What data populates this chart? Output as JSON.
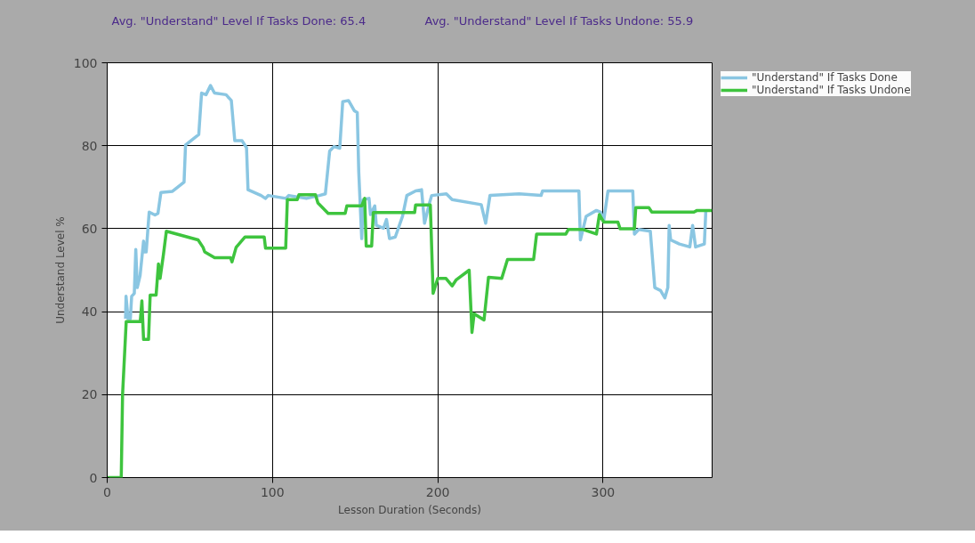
{
  "chart_data": {
    "type": "line",
    "xlabel": "Lesson Duration (Seconds)",
    "ylabel": "Understand Level %",
    "annotations": [
      "Avg. \"Understand\" Level If Tasks Done: 65.4",
      "Avg. \"Understand\" Level If Tasks Undone: 55.9"
    ],
    "xlim": [
      0,
      366
    ],
    "ylim": [
      0,
      100
    ],
    "xticks": [
      0,
      100,
      200,
      300
    ],
    "yticks": [
      0,
      20,
      40,
      60,
      80,
      100
    ],
    "grid": true,
    "legend": "top right",
    "line_style": "solid",
    "marker": "none",
    "series": [
      {
        "name": "\"Understand\" If Tasks Done",
        "color": "#8ac6e2",
        "x": [
          11.1,
          11.4,
          12.6,
          14,
          14.8,
          16.4,
          17.3,
          18.2,
          19.9,
          22,
          22.7,
          23.6,
          25.4,
          28.9,
          30.7,
          32.5,
          39.5,
          46.5,
          47.4,
          55.4,
          57.1,
          59.8,
          62.5,
          64.9,
          71.9,
          75.1,
          77.2,
          81.6,
          84.3,
          85.2,
          93.1,
          95.7,
          97.5,
          108.1,
          109.9,
          120.5,
          128.4,
          132,
          134.6,
          137.2,
          140.7,
          142.5,
          146,
          149.6,
          151.3,
          152.2,
          154,
          154.9,
          158.4,
          159.3,
          161.9,
          162.8,
          167.2,
          169,
          170.8,
          174.3,
          178.7,
          181.3,
          186.6,
          190.2,
          192,
          194.6,
          196.3,
          205.2,
          208.7,
          226.3,
          229,
          231.6,
          249.2,
          262.5,
          263.4,
          285.4,
          286.3,
          289.8,
          296,
          298.6,
          300.4,
          303,
          318,
          319,
          321.6,
          328.6,
          331.3,
          334.8,
          337.4,
          339.2,
          340,
          340.9,
          346.2,
          352.5,
          354.2,
          356,
          361.3,
          362.2
        ],
        "values": [
          38.3,
          43.7,
          38.3,
          38.3,
          43.7,
          44.4,
          55,
          45.8,
          48.7,
          57,
          54.4,
          54.4,
          64,
          63.3,
          63.7,
          68.7,
          69,
          71.2,
          80.2,
          82.7,
          92.7,
          92.3,
          94.5,
          92.7,
          92.3,
          90.9,
          81.2,
          81.2,
          79.5,
          69.4,
          68,
          67.3,
          68,
          67.3,
          68,
          67.3,
          68,
          68.4,
          78.7,
          79.8,
          79.4,
          90.6,
          90.9,
          88.4,
          88,
          73.7,
          57.6,
          67,
          67.3,
          63.4,
          65.5,
          60.8,
          60.1,
          62.2,
          57.6,
          58,
          63,
          68,
          69.1,
          69.4,
          61.3,
          65.6,
          68,
          68.4,
          67,
          65.8,
          61.3,
          68,
          68.4,
          68,
          69.1,
          69.1,
          57.3,
          63,
          64.4,
          64,
          61.9,
          69.1,
          69.1,
          58.7,
          59.8,
          59.4,
          45.8,
          45.1,
          43.3,
          45.8,
          60.8,
          57.3,
          56.3,
          55.6,
          60.8,
          55.6,
          56.3,
          64.4
        ]
      },
      {
        "name": "\"Understand\" If Tasks Undone",
        "color": "#3ec43e",
        "x": [
          0,
          8.5,
          9.3,
          11.5,
          20,
          21,
          22,
          25,
          26,
          29.6,
          31,
          32,
          34,
          35.8,
          55,
          58,
          59,
          65,
          74.6,
          75.5,
          78,
          83.4,
          95,
          95.8,
          108,
          109,
          115,
          116,
          126,
          127.5,
          133.7,
          144,
          145,
          154,
          155.8,
          156.7,
          160,
          161,
          186,
          186.6,
          195.5,
          197.2,
          200,
          205,
          208.7,
          211,
          219,
          220.7,
          222,
          228,
          230.7,
          238.7,
          242.2,
          258,
          259.8,
          277.5,
          279,
          288,
          296,
          297.8,
          300.4,
          309,
          310.3,
          319,
          319.8,
          327.7,
          329.5,
          355,
          356.9,
          366
        ],
        "values": [
          0,
          0,
          20,
          37.6,
          37.6,
          42.6,
          33.3,
          33.3,
          44,
          44,
          51.5,
          48,
          53.7,
          59.4,
          57.3,
          55.5,
          54.4,
          53,
          53,
          52,
          55.5,
          58,
          58,
          55.3,
          55.3,
          67,
          67,
          68.2,
          68.2,
          66.2,
          63.7,
          63.7,
          65.5,
          65.5,
          67.3,
          55.8,
          55.8,
          63.9,
          63.9,
          65.7,
          65.7,
          44.4,
          48,
          48,
          46.2,
          47.6,
          50,
          35,
          39.5,
          38,
          48.3,
          48,
          52.6,
          52.6,
          58.7,
          58.7,
          59.8,
          59.8,
          58.7,
          63.4,
          61.6,
          61.6,
          60,
          60,
          65.1,
          65.1,
          64,
          64,
          64.4,
          64.4
        ]
      }
    ]
  }
}
